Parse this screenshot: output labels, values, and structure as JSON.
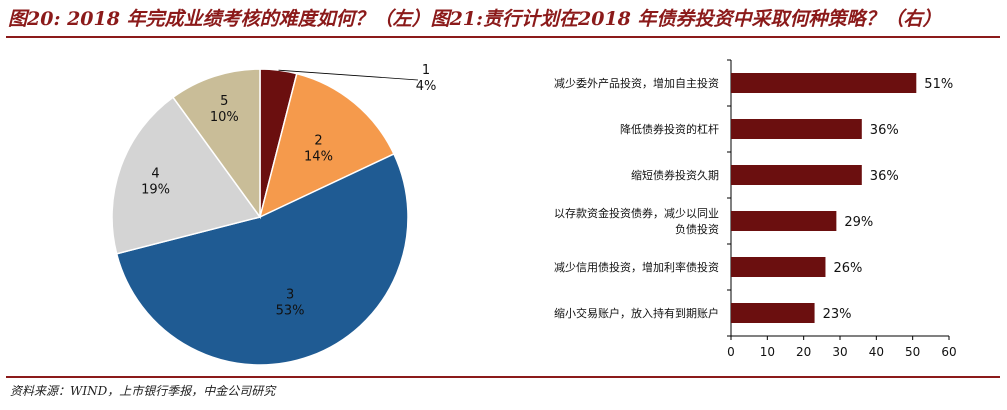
{
  "header": {
    "title": "图20: 2018 年完成业绩考核的难度如何？（左）图21:责行计划在2018 年债券投资中采取何种策略？（右）"
  },
  "footer": {
    "source": "资料来源：WIND，上市银行季报，中金公司研究"
  },
  "chart_data": [
    {
      "type": "pie",
      "title": "",
      "slices": [
        {
          "label": "1",
          "value": 4,
          "pct_label": "4%",
          "color": "#6b0f0f"
        },
        {
          "label": "2",
          "value": 14,
          "pct_label": "14%",
          "color": "#f59a4c"
        },
        {
          "label": "3",
          "value": 53,
          "pct_label": "53%",
          "color": "#1f5b93"
        },
        {
          "label": "4",
          "value": 19,
          "pct_label": "19%",
          "color": "#d4d4d4"
        },
        {
          "label": "5",
          "value": 10,
          "pct_label": "10%",
          "color": "#c9bd98"
        }
      ]
    },
    {
      "type": "bar",
      "orientation": "horizontal",
      "title": "",
      "categories": [
        [
          "减少委外产品投资，增加自主投资"
        ],
        [
          "降低债券投资的杠杆"
        ],
        [
          "缩短债券投资久期"
        ],
        [
          "以存款资金投资债券，减少以同业",
          "负债投资"
        ],
        [
          "减少信用债投资，增加利率债投资"
        ],
        [
          "缩小交易账户，放入持有到期账户"
        ]
      ],
      "values": [
        51,
        36,
        36,
        29,
        26,
        23
      ],
      "value_labels": [
        "51%",
        "36%",
        "36%",
        "29%",
        "26%",
        "23%"
      ],
      "xlim": [
        0,
        60
      ],
      "xticks": [
        0,
        10,
        20,
        30,
        40,
        50,
        60
      ],
      "bar_color": "#6b0f0f",
      "grid": false
    }
  ]
}
